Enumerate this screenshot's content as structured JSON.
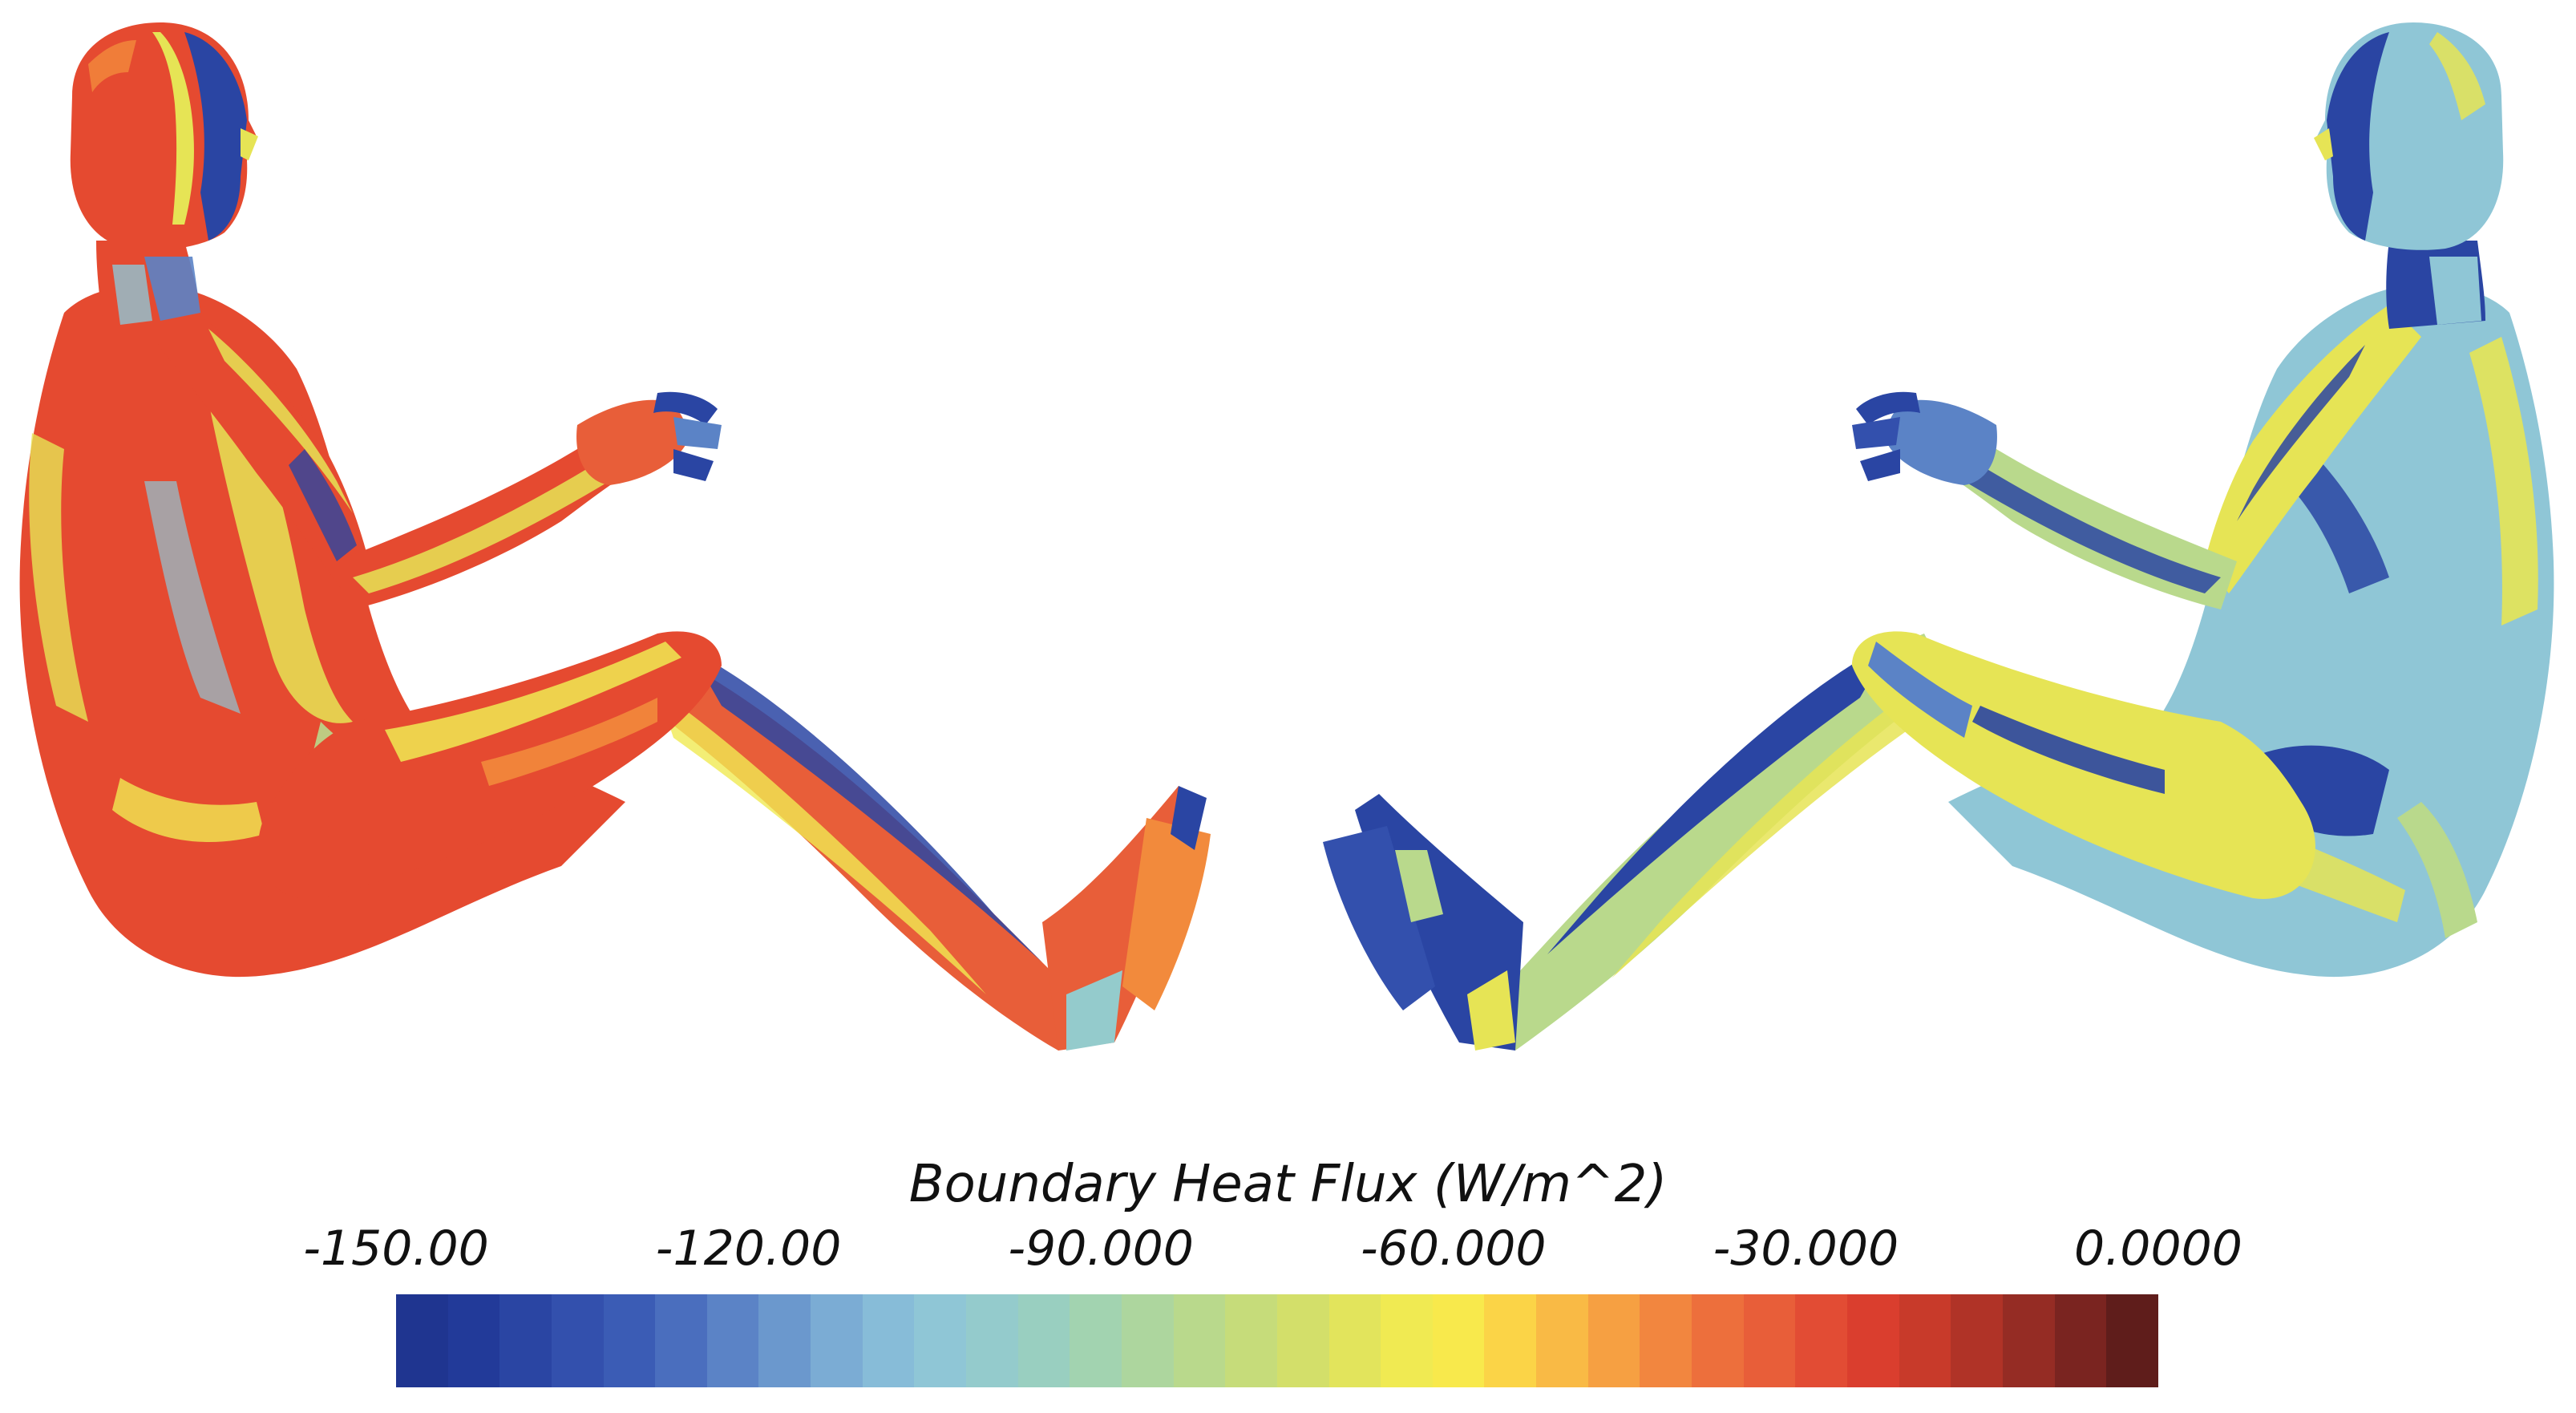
{
  "legend": {
    "title": "Boundary Heat Flux (W/m^2)",
    "ticks": [
      {
        "label": "-150.00",
        "value": -150
      },
      {
        "label": "-120.00",
        "value": -120
      },
      {
        "label": "-90.000",
        "value": -90
      },
      {
        "label": "-60.000",
        "value": -60
      },
      {
        "label": "-30.000",
        "value": -30
      },
      {
        "label": "0.0000",
        "value": 0
      }
    ],
    "range": [
      -150,
      0
    ],
    "colormap": [
      "#1f3590",
      "#223a99",
      "#2a45a3",
      "#3350ad",
      "#3b5cb5",
      "#4a6ebe",
      "#5b83c6",
      "#6b98cd",
      "#7bacd4",
      "#87bcd8",
      "#8fc6d6",
      "#94cbcc",
      "#99cfc0",
      "#a2d3b0",
      "#add69e",
      "#b9d98c",
      "#c6dc7a",
      "#d3df6a",
      "#e2e45c",
      "#f0ea52",
      "#f8e94c",
      "#fbd447",
      "#f9ba45",
      "#f6a042",
      "#f2863f",
      "#ed6f3c",
      "#e85e39",
      "#e24c34",
      "#da3e2e",
      "#c83a2a",
      "#b03327",
      "#952c24",
      "#7a2420",
      "#5f1d1b"
    ]
  },
  "figure": {
    "views": [
      "front-left",
      "back-right"
    ],
    "colors": {
      "hot_red": "#e54a30",
      "warm_orange": "#f28a3c",
      "yellow": "#e6e455",
      "yellow_green": "#b9d98c",
      "cyan": "#8fc6d6",
      "mid_blue": "#5b83c6",
      "deep_blue": "#2a45a3"
    }
  }
}
